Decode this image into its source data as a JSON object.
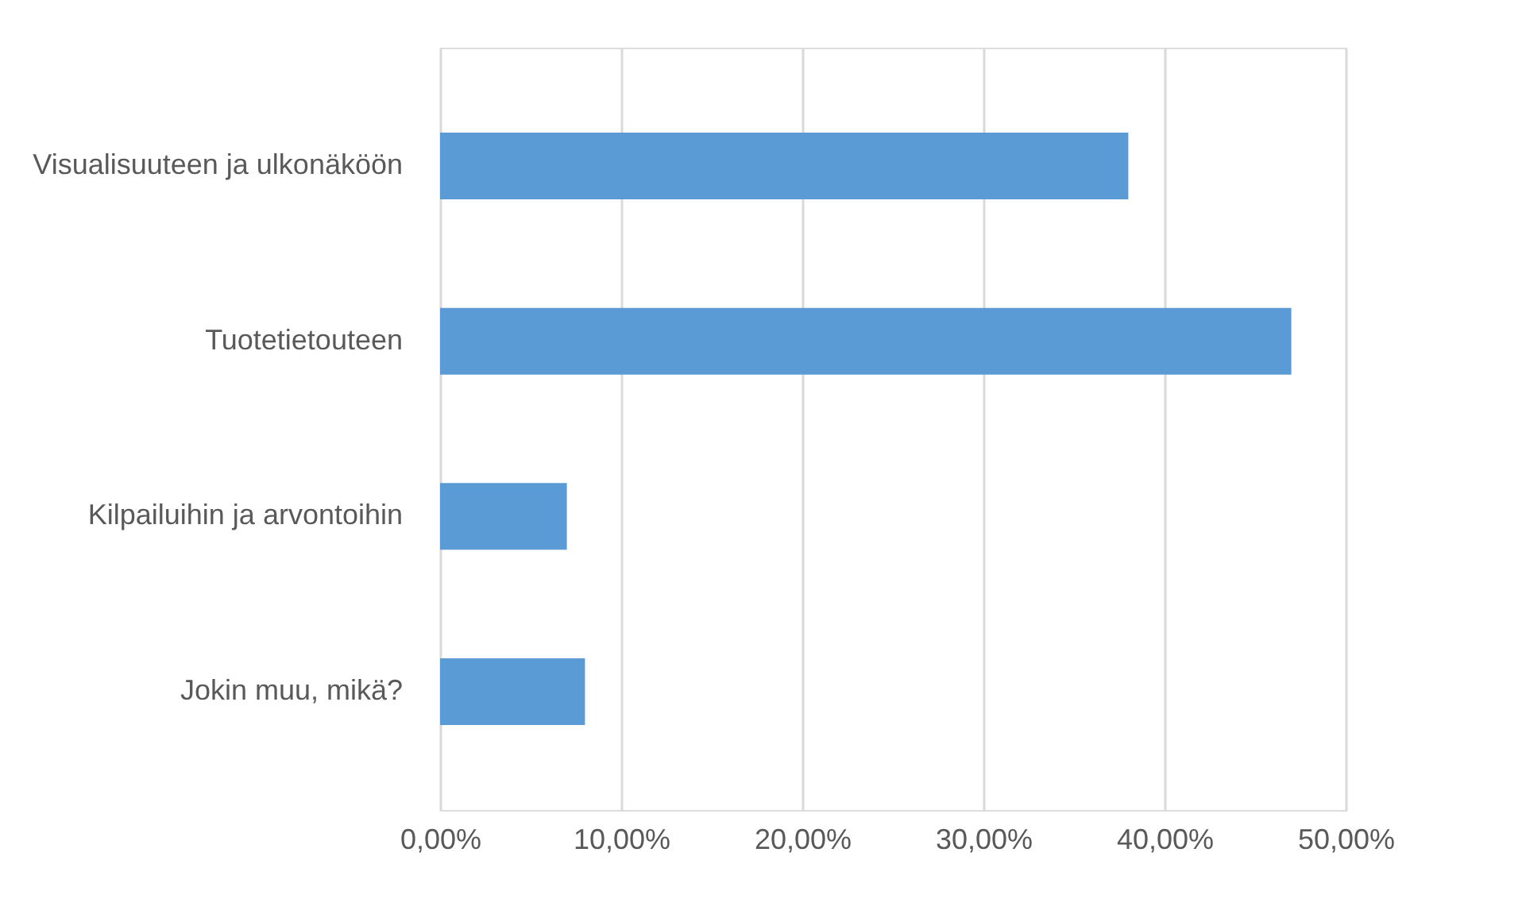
{
  "chart_data": {
    "type": "bar",
    "orientation": "horizontal",
    "categories": [
      "Visualisuuteen ja ulkonäköön",
      "Tuotetietouteen",
      "Kilpailuihin ja arvontoihin",
      "Jokin muu, mikä?"
    ],
    "values": [
      38,
      47,
      7,
      8
    ],
    "color": "#5b9bd5",
    "xlim": [
      0,
      50
    ],
    "xticks": [
      {
        "value": 0,
        "label": "0,00%"
      },
      {
        "value": 10,
        "label": "10,00%"
      },
      {
        "value": 20,
        "label": "20,00%"
      },
      {
        "value": 30,
        "label": "30,00%"
      },
      {
        "value": 40,
        "label": "40,00%"
      },
      {
        "value": 50,
        "label": "50,00%"
      }
    ],
    "grid": "x"
  }
}
